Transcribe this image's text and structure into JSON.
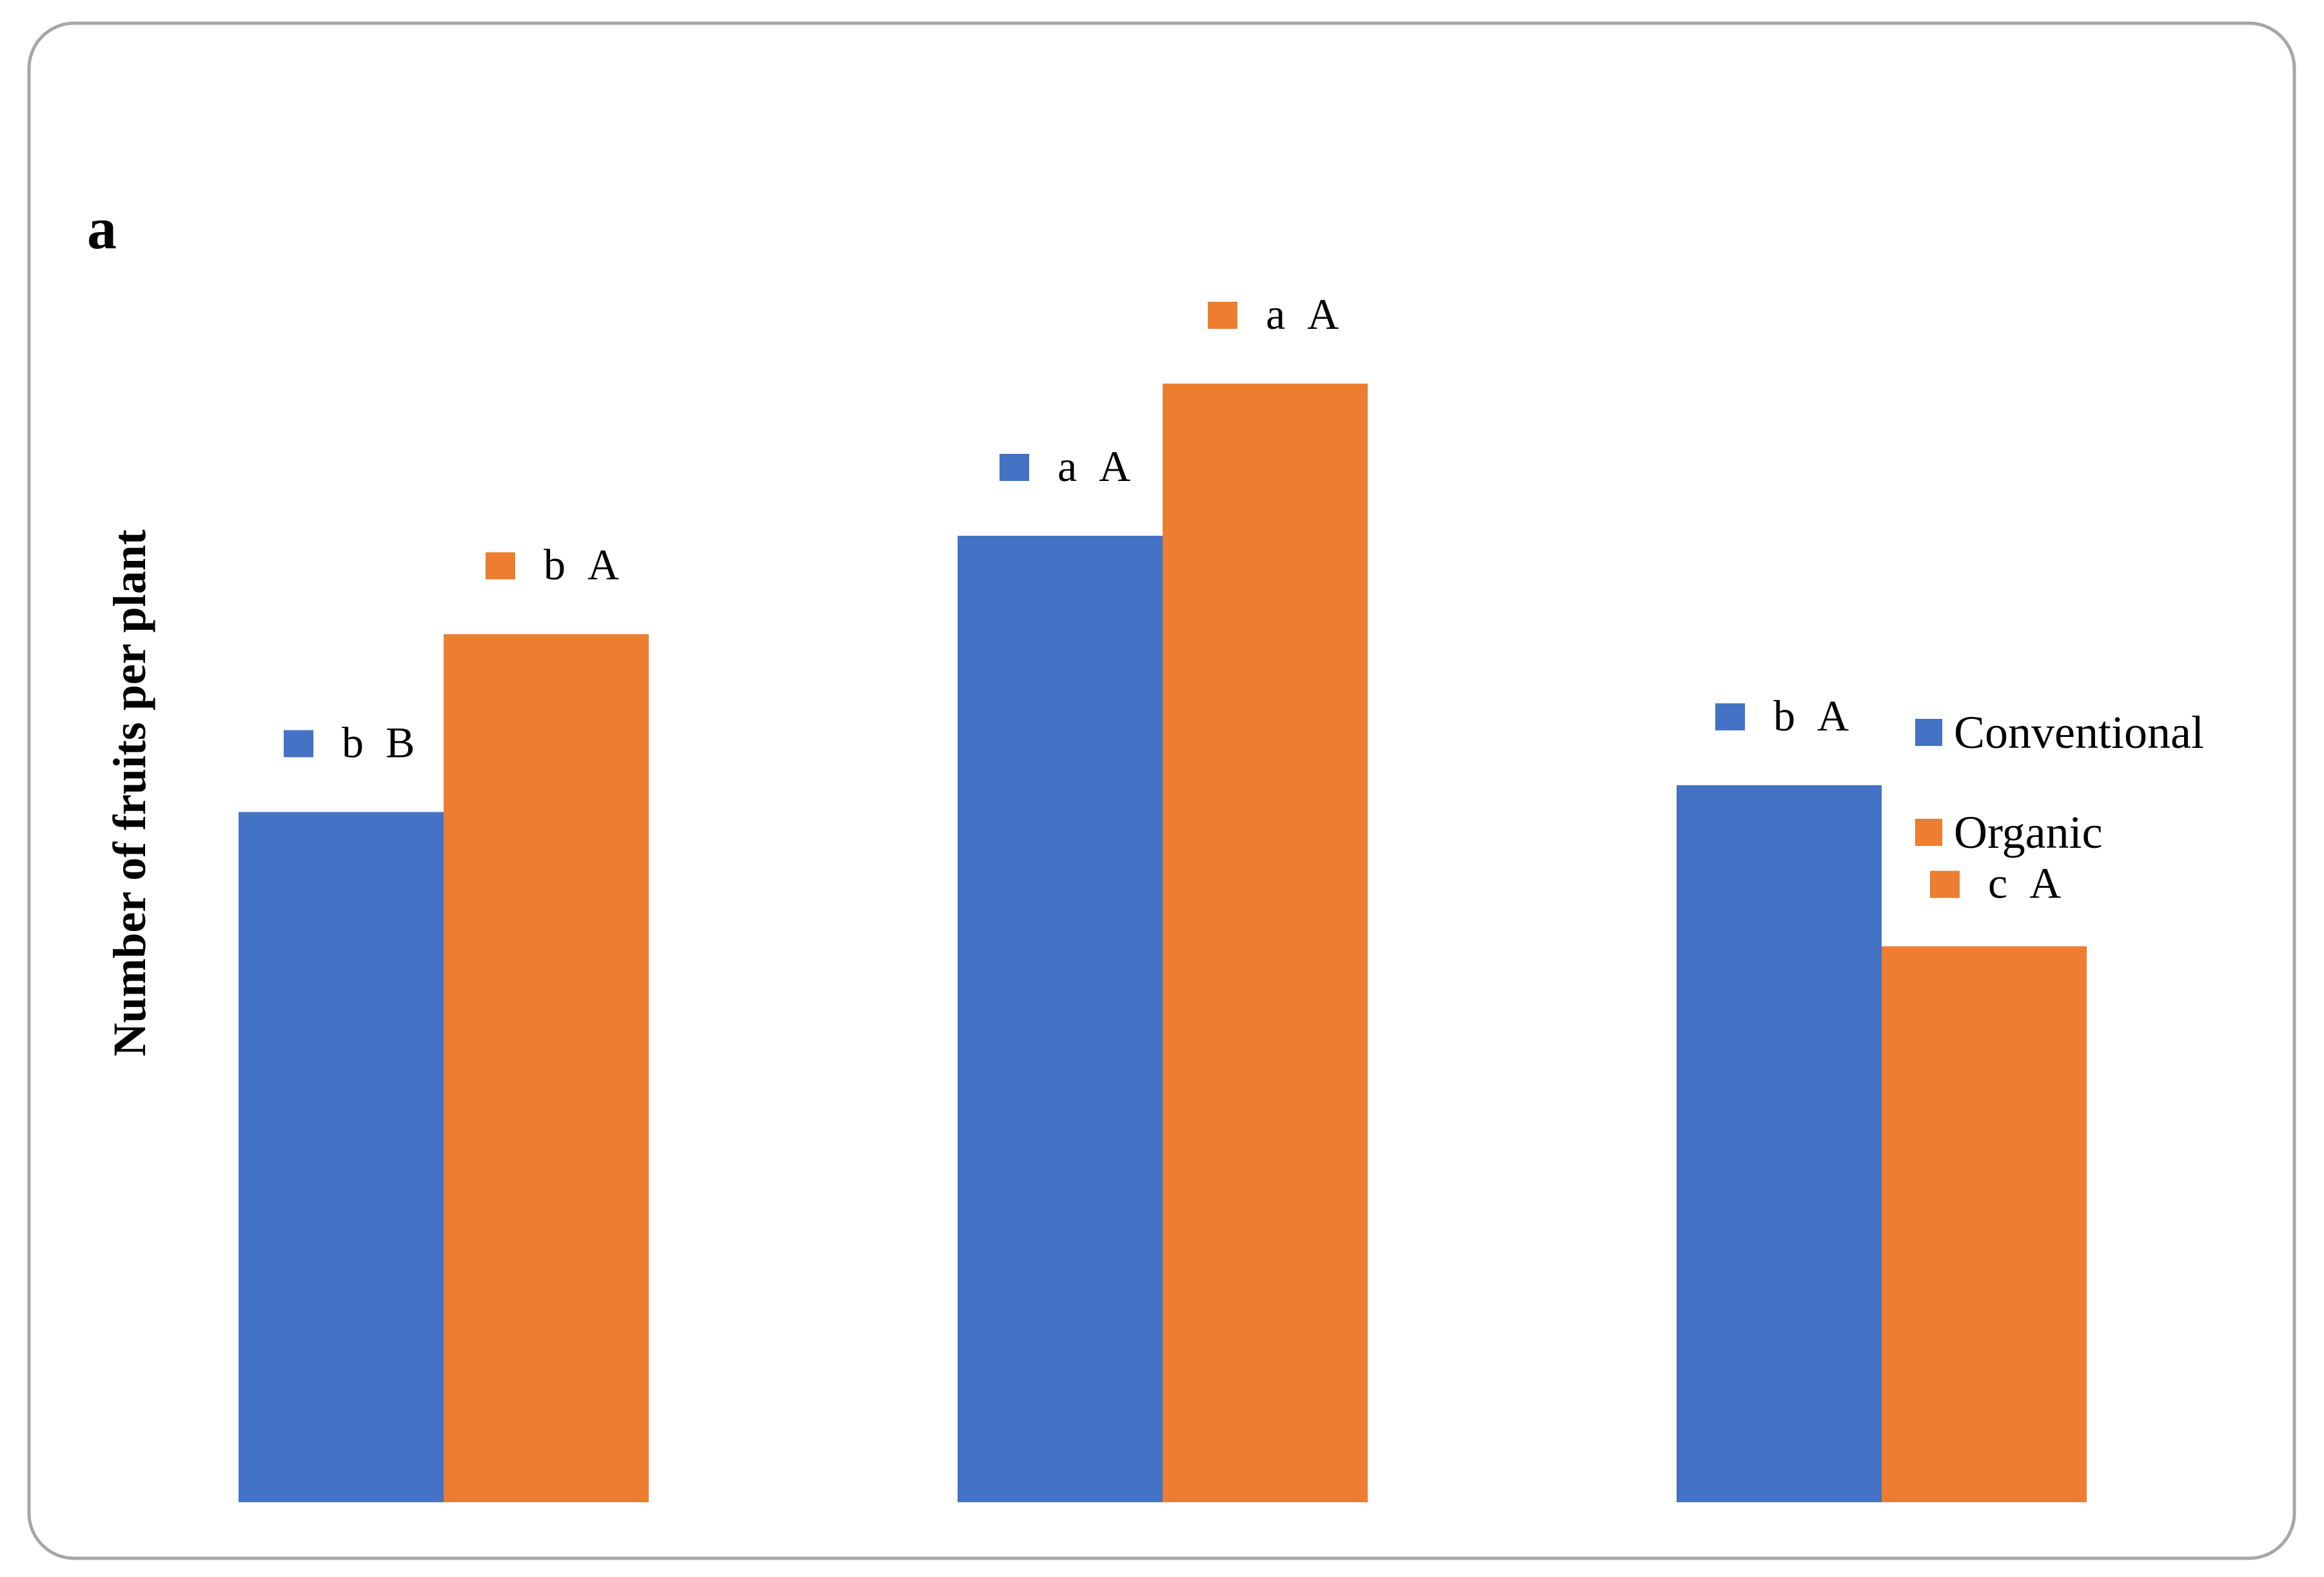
{
  "panel_label": "a",
  "colors": {
    "conventional": "#4472C4",
    "organic": "#ED7D31",
    "frame": "#A6A6A6"
  },
  "chart_data": {
    "type": "bar",
    "categories": [
      "",
      "",
      ""
    ],
    "ylabel": "Number of fruits per plant",
    "xlabel": "",
    "ylim": [
      0,
      100
    ],
    "grid": false,
    "legend_position": "right",
    "series": [
      {
        "name": "Conventional",
        "values": [
          61.7,
          86.4,
          64.1
        ],
        "labels": [
          "b B",
          "a A",
          "b A"
        ]
      },
      {
        "name": "Organic",
        "values": [
          77.6,
          100,
          49.7
        ],
        "labels": [
          "b A",
          "a A",
          "c A"
        ]
      }
    ]
  }
}
